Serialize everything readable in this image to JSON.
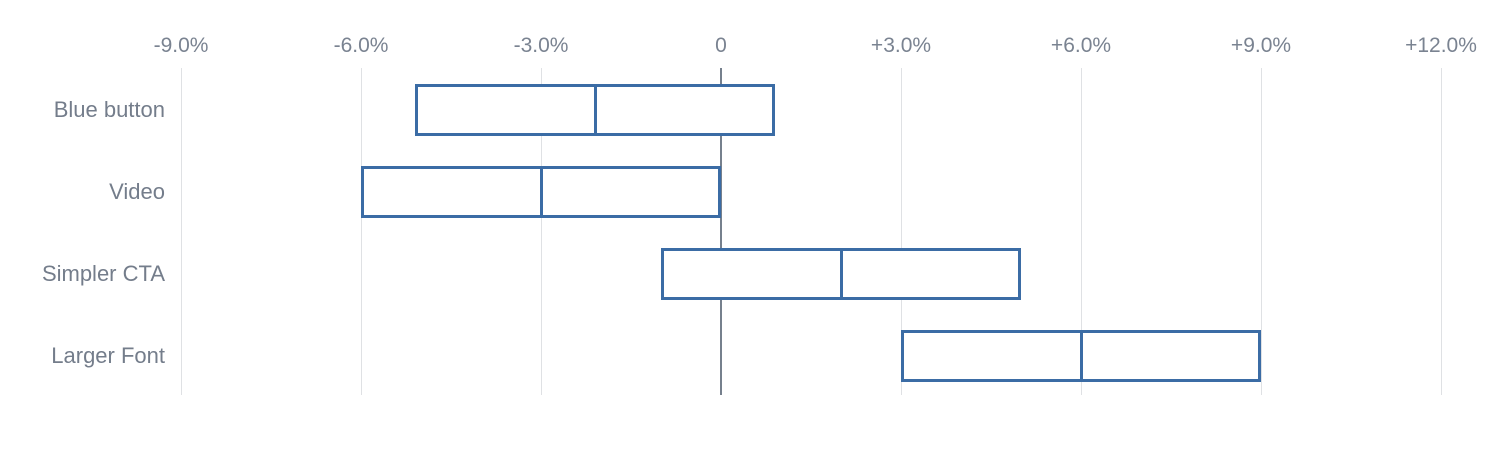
{
  "chart_data": {
    "type": "range_bar",
    "title": "",
    "xlabel": "",
    "ylabel": "",
    "orientation": "horizontal",
    "categories": [
      "Blue button",
      "Video",
      "Simpler CTA",
      "Larger Font"
    ],
    "series": [
      {
        "name": "Blue button",
        "low": -5.1,
        "mid": -2.1,
        "high": 0.9
      },
      {
        "name": "Video",
        "low": -6.0,
        "mid": -3.0,
        "high": 0.0
      },
      {
        "name": "Simpler CTA",
        "low": -1.0,
        "mid": 2.0,
        "high": 5.0
      },
      {
        "name": "Larger Font",
        "low": 3.0,
        "mid": 6.0,
        "high": 9.0
      }
    ],
    "x_ticks": [
      {
        "value": -9,
        "label": "-9.0%"
      },
      {
        "value": -6,
        "label": "-6.0%"
      },
      {
        "value": -3,
        "label": "-3.0%"
      },
      {
        "value": 0,
        "label": "0"
      },
      {
        "value": 3,
        "label": "+3.0%"
      },
      {
        "value": 6,
        "label": "+6.0%"
      },
      {
        "value": 9,
        "label": "+9.0%"
      },
      {
        "value": 12,
        "label": "+12.0%"
      }
    ],
    "xlim": [
      -9,
      12
    ],
    "grid": true,
    "legend": "none",
    "unit": "percent"
  },
  "colors": {
    "bar_border": "#3b6ca5",
    "bar_fill": "#ffffff",
    "zero_line": "#76808d",
    "gridline": "#dfe1e4",
    "tick_text": "#7a8391",
    "category_text": "#747d8b",
    "background": "#ffffff"
  }
}
